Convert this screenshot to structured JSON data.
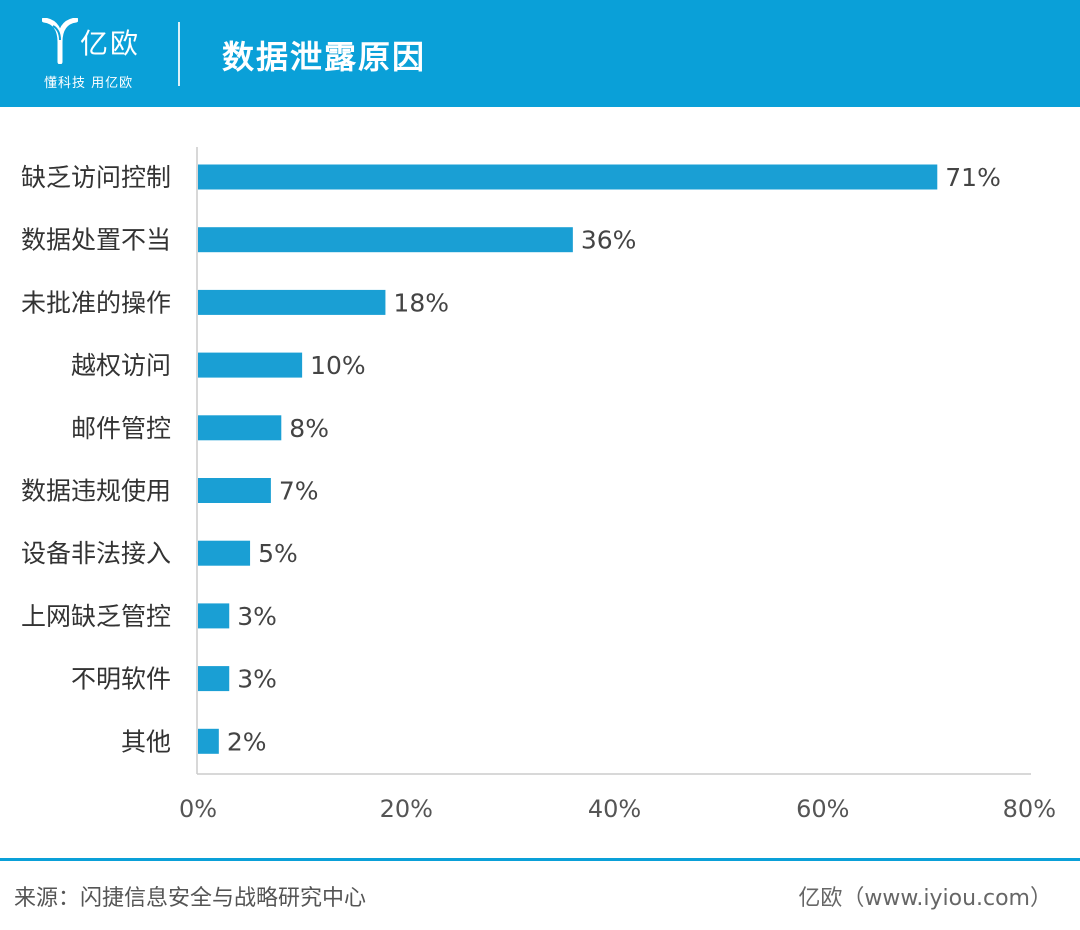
{
  "header": {
    "logo_name": "亿欧",
    "logo_slogan": "懂科技 用亿欧",
    "title": "数据泄露原因"
  },
  "colors": {
    "header_bg": "#0aa0d8",
    "bar": "#1a9fd4",
    "axis": "#cccccc"
  },
  "chart_data": {
    "type": "bar",
    "orientation": "horizontal",
    "title": "数据泄露原因",
    "categories": [
      "缺乏访问控制",
      "数据处置不当",
      "未批准的操作",
      "越权访问",
      "邮件管控",
      "数据违规使用",
      "设备非法接入",
      "上网缺乏管控",
      "不明软件",
      "其他"
    ],
    "values": [
      71,
      36,
      18,
      10,
      8,
      7,
      5,
      3,
      3,
      2
    ],
    "value_labels": [
      "71%",
      "36%",
      "18%",
      "10%",
      "8%",
      "7%",
      "5%",
      "3%",
      "3%",
      "2%"
    ],
    "xlim": [
      0,
      80
    ],
    "x_ticks": [
      0,
      20,
      40,
      60,
      80
    ],
    "x_tick_labels": [
      "0%",
      "20%",
      "40%",
      "60%",
      "80%"
    ],
    "grid": false,
    "legend": "none"
  },
  "footer": {
    "source": "来源：闪捷信息安全与战略研究中心",
    "brand": "亿欧（www.iyiou.com）"
  }
}
